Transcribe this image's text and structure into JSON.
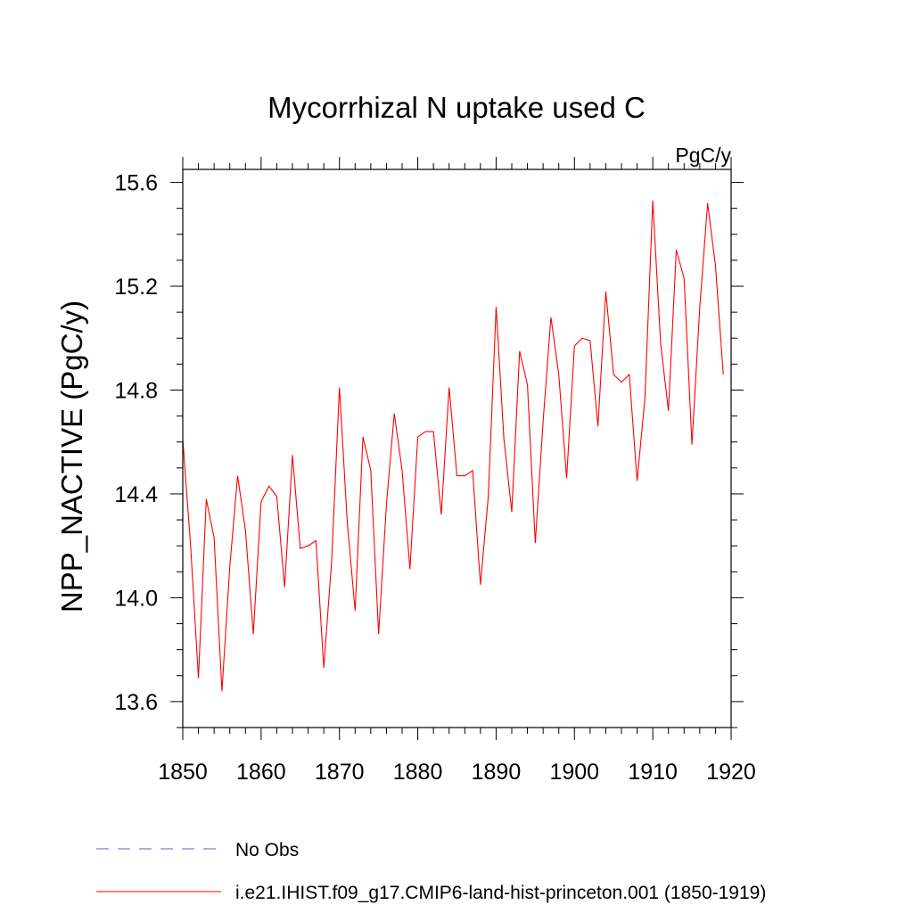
{
  "chart_data": {
    "type": "line",
    "title": "Mycorrhizal N uptake used C",
    "units": "PgC/y",
    "xlabel": "",
    "ylabel": "NPP_NACTIVE  (PgC/y)",
    "xlim": [
      1850,
      1920
    ],
    "ylim": [
      13.5,
      15.65
    ],
    "xticks": [
      1850,
      1860,
      1870,
      1880,
      1890,
      1900,
      1910,
      1920
    ],
    "yticks": [
      13.6,
      14.0,
      14.4,
      14.8,
      15.2,
      15.6
    ],
    "ytick_labels": [
      "13.6",
      "14.0",
      "14.4",
      "14.8",
      "15.2",
      "15.6"
    ],
    "grid": false,
    "legend_position": "bottom",
    "series": [
      {
        "name": "No Obs",
        "color": "#6a5acd",
        "dash": "dashed",
        "values": []
      },
      {
        "name": "i.e21.IHIST.f09_g17.CMIP6-land-hist-princeton.001 (1850-1919)",
        "color": "#ff0000",
        "dash": "solid",
        "x": [
          1850,
          1851,
          1852,
          1853,
          1854,
          1855,
          1856,
          1857,
          1858,
          1859,
          1860,
          1861,
          1862,
          1863,
          1864,
          1865,
          1866,
          1867,
          1868,
          1869,
          1870,
          1871,
          1872,
          1873,
          1874,
          1875,
          1876,
          1877,
          1878,
          1879,
          1880,
          1881,
          1882,
          1883,
          1884,
          1885,
          1886,
          1887,
          1888,
          1889,
          1890,
          1891,
          1892,
          1893,
          1894,
          1895,
          1896,
          1897,
          1898,
          1899,
          1900,
          1901,
          1902,
          1903,
          1904,
          1905,
          1906,
          1907,
          1908,
          1909,
          1910,
          1911,
          1912,
          1913,
          1914,
          1915,
          1916,
          1917,
          1918,
          1919
        ],
        "values": [
          14.61,
          14.2,
          13.69,
          14.38,
          14.23,
          13.64,
          14.12,
          14.47,
          14.26,
          13.86,
          14.37,
          14.43,
          14.39,
          14.04,
          14.55,
          14.19,
          14.2,
          14.22,
          13.73,
          14.14,
          14.81,
          14.29,
          13.95,
          14.62,
          14.49,
          13.86,
          14.36,
          14.71,
          14.49,
          14.11,
          14.62,
          14.64,
          14.64,
          14.32,
          14.81,
          14.47,
          14.47,
          14.49,
          14.05,
          14.39,
          15.12,
          14.61,
          14.33,
          14.95,
          14.82,
          14.21,
          14.68,
          15.08,
          14.86,
          14.46,
          14.97,
          15.0,
          14.99,
          14.66,
          15.18,
          14.86,
          14.83,
          14.86,
          14.45,
          14.77,
          15.53,
          14.98,
          14.72,
          15.34,
          15.23,
          14.59,
          15.12,
          15.52,
          15.28,
          14.86
        ]
      }
    ]
  }
}
